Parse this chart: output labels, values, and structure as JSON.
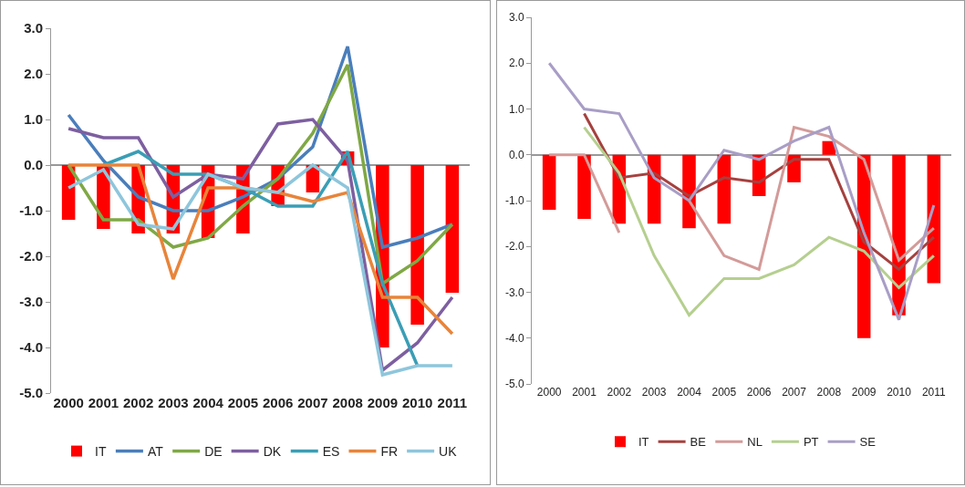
{
  "chart_data": [
    {
      "type": "bar",
      "categories": [
        "2000",
        "2001",
        "2002",
        "2003",
        "2004",
        "2005",
        "2006",
        "2007",
        "2008",
        "2009",
        "2010",
        "2011"
      ],
      "ylim": [
        -5,
        3
      ],
      "yticks": [
        {
          "value": 3,
          "label": "3.0"
        },
        {
          "value": 2,
          "label": "2.0"
        },
        {
          "value": 1,
          "label": "1.0"
        },
        {
          "value": 0,
          "label": "0.0"
        },
        {
          "value": -1,
          "label": "-1.0"
        },
        {
          "value": -2,
          "label": "-2.0"
        },
        {
          "value": -3,
          "label": "-3.0"
        },
        {
          "value": -4,
          "label": "-4.0"
        },
        {
          "value": -5,
          "label": "-5.0"
        }
      ],
      "legend": "bottom",
      "series": [
        {
          "name": "IT",
          "color": "#ff0000",
          "values": [
            -1.2,
            -1.4,
            -1.5,
            -1.5,
            -1.6,
            -1.5,
            -0.9,
            -0.6,
            0.3,
            -4.0,
            -3.5,
            -2.8
          ]
        },
        {
          "name": "AT",
          "type": "line",
          "color": "#4a7ebb",
          "values": [
            1.1,
            0.1,
            -0.7,
            -1.0,
            -1.0,
            -0.7,
            -0.3,
            0.4,
            2.6,
            -1.8,
            -1.6,
            -1.3
          ]
        },
        {
          "name": "DE",
          "type": "line",
          "color": "#7fa845",
          "values": [
            0.0,
            -1.2,
            -1.2,
            -1.8,
            -1.6,
            -0.9,
            -0.3,
            0.7,
            2.2,
            -2.6,
            -2.1,
            -1.3
          ]
        },
        {
          "name": "DK",
          "type": "line",
          "color": "#7d5fa0",
          "values": [
            0.8,
            0.6,
            0.6,
            -0.7,
            -0.2,
            -0.3,
            0.9,
            1.0,
            0.1,
            -4.5,
            -3.9,
            -2.9
          ]
        },
        {
          "name": "ES",
          "type": "line",
          "color": "#3a9eb5",
          "values": [
            null,
            0.0,
            0.3,
            -0.2,
            -0.2,
            -0.5,
            -0.9,
            -0.9,
            0.3,
            -2.6,
            -4.4,
            null
          ]
        },
        {
          "name": "FR",
          "type": "line",
          "color": "#e8843a",
          "values": [
            0.0,
            0.0,
            0.0,
            -2.5,
            -0.5,
            -0.5,
            -0.6,
            -0.8,
            -0.6,
            -2.9,
            -2.9,
            -3.7
          ]
        },
        {
          "name": "UK",
          "type": "line",
          "color": "#8ec6dc",
          "values": [
            -0.5,
            -0.1,
            -1.3,
            -1.4,
            -0.2,
            -0.5,
            -0.6,
            0.0,
            -0.5,
            -4.6,
            -4.4,
            -4.4
          ]
        }
      ]
    },
    {
      "type": "bar",
      "categories": [
        "2000",
        "2001",
        "2002",
        "2003",
        "2004",
        "2005",
        "2006",
        "2007",
        "2008",
        "2009",
        "2010",
        "2011"
      ],
      "ylim": [
        -5,
        3
      ],
      "yticks": [
        {
          "value": 3,
          "label": "3.0"
        },
        {
          "value": 2,
          "label": "2.0"
        },
        {
          "value": 1,
          "label": "1.0"
        },
        {
          "value": 0,
          "label": "0.0"
        },
        {
          "value": -1,
          "label": "-1.0"
        },
        {
          "value": -2,
          "label": "-2.0"
        },
        {
          "value": -3,
          "label": "-3.0"
        },
        {
          "value": -4,
          "label": "-4.0"
        },
        {
          "value": -5,
          "label": "-5.0"
        }
      ],
      "legend": "bottom",
      "series": [
        {
          "name": "IT",
          "color": "#ff0000",
          "values": [
            -1.2,
            -1.4,
            -1.5,
            -1.5,
            -1.6,
            -1.5,
            -0.9,
            -0.6,
            0.3,
            -4.0,
            -3.5,
            -2.8
          ]
        },
        {
          "name": "BE",
          "type": "line",
          "color": "#a5413f",
          "values": [
            null,
            0.9,
            -0.5,
            -0.4,
            -0.9,
            -0.5,
            -0.6,
            -0.1,
            -0.1,
            -1.9,
            -2.5,
            -1.8
          ]
        },
        {
          "name": "NL",
          "type": "line",
          "color": "#d39b99",
          "values": [
            0.0,
            0.0,
            -1.7,
            null,
            -1.0,
            -2.2,
            -2.5,
            0.6,
            0.4,
            -0.1,
            -2.3,
            -1.6
          ]
        },
        {
          "name": "PT",
          "type": "line",
          "color": "#b5cf8f",
          "values": [
            null,
            0.6,
            -0.4,
            -2.2,
            -3.5,
            -2.7,
            -2.7,
            -2.4,
            -1.8,
            -2.1,
            -2.9,
            -2.2
          ]
        },
        {
          "name": "SE",
          "type": "line",
          "color": "#a89ec6",
          "values": [
            2.0,
            1.0,
            0.9,
            -0.5,
            -1.0,
            0.1,
            -0.1,
            0.3,
            0.6,
            -1.7,
            -3.6,
            -1.1
          ]
        }
      ]
    }
  ]
}
